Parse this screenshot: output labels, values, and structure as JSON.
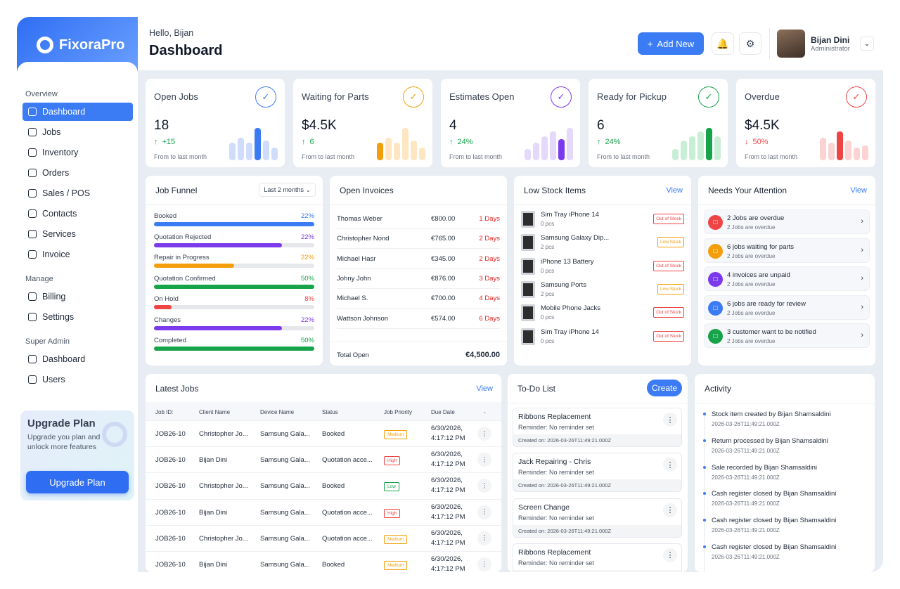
{
  "brand": {
    "name": "FixoraPro"
  },
  "sidebar": {
    "sections": [
      {
        "title": "Overview",
        "items": [
          {
            "label": "Dashboard",
            "icon": "home-icon",
            "active": true
          },
          {
            "label": "Jobs",
            "icon": "inbox-icon"
          },
          {
            "label": "Inventory",
            "icon": "clipboard-icon"
          },
          {
            "label": "Orders",
            "icon": "archive-icon"
          },
          {
            "label": "Sales / POS",
            "icon": "clipboard-icon"
          },
          {
            "label": "Contacts",
            "icon": "users-icon"
          },
          {
            "label": "Services",
            "icon": "server-icon"
          },
          {
            "label": "Invoice",
            "icon": "file-icon"
          }
        ]
      },
      {
        "title": "Manage",
        "items": [
          {
            "label": "Billing",
            "icon": "card-icon"
          },
          {
            "label": "Settings",
            "icon": "gear-icon"
          }
        ]
      },
      {
        "title": "Super Admin",
        "items": [
          {
            "label": "Dashboard",
            "icon": "home-icon"
          },
          {
            "label": "Users",
            "icon": "user-gear-icon"
          }
        ]
      }
    ],
    "upgrade": {
      "title": "Upgrade Plan",
      "text": "Upgrade you plan and unlock more features",
      "button": "Upgrade Plan"
    }
  },
  "header": {
    "greeting": "Hello, Bijan",
    "title": "Dashboard",
    "add_new": "Add New",
    "user_name": "Bijan Dini",
    "user_role": "Administrator"
  },
  "stats": [
    {
      "label": "Open Jobs",
      "value": "18",
      "change": "+15",
      "trend": "up",
      "sub": "From to last month",
      "color": "#3b7cf5",
      "light": "#cfdcfb",
      "bars": [
        0.55,
        0.7,
        0.55,
        1.0,
        0.6,
        0.4
      ],
      "highlight": 3
    },
    {
      "label": "Waiting for Parts",
      "value": "$4.5K",
      "change": "6",
      "trend": "up",
      "sub": "From to last month",
      "color": "#f59e0b",
      "light": "#fde6c1",
      "bars": [
        0.55,
        0.7,
        0.55,
        1.0,
        0.6,
        0.4
      ],
      "highlight": 0
    },
    {
      "label": "Estimates Open",
      "value": "4",
      "change": "24%",
      "trend": "up",
      "sub": "From to last month",
      "color": "#7c3aed",
      "light": "#e4d8fb",
      "bars": [
        0.35,
        0.55,
        0.75,
        0.9,
        0.65,
        1.0
      ],
      "highlight": 4
    },
    {
      "label": "Ready for Pickup",
      "value": "6",
      "change": "24%",
      "trend": "up",
      "sub": "From to last month",
      "color": "#16a34a",
      "light": "#c8efd5",
      "bars": [
        0.35,
        0.6,
        0.75,
        0.9,
        1.0,
        0.75
      ],
      "highlight": 4
    },
    {
      "label": "Overdue",
      "value": "$4.5K",
      "change": "50%",
      "trend": "down",
      "sub": "From to last month",
      "color": "#ef4444",
      "light": "#fbd3d3",
      "bars": [
        0.7,
        0.55,
        0.9,
        0.6,
        0.4,
        0.45
      ],
      "highlight": 2
    }
  ],
  "funnel": {
    "title": "Job Funnel",
    "filter": "Last 2 months",
    "rows": [
      {
        "label": "Booked",
        "pct": "22%",
        "fill": 1.0,
        "color": "#3b7cf5"
      },
      {
        "label": "Quotation Rejected",
        "pct": "22%",
        "fill": 0.8,
        "color": "#7c3aed"
      },
      {
        "label": "Repair in Progress",
        "pct": "22%",
        "fill": 0.5,
        "color": "#f59e0b"
      },
      {
        "label": "Quotation Confirmed",
        "pct": "50%",
        "fill": 1.0,
        "color": "#16a34a"
      },
      {
        "label": "On Hold",
        "pct": "8%",
        "fill": 0.11,
        "color": "#ef4444"
      },
      {
        "label": "Changes",
        "pct": "22%",
        "fill": 0.8,
        "color": "#7c3aed"
      },
      {
        "label": "Completed",
        "pct": "50%",
        "fill": 1.0,
        "color": "#16a34a"
      }
    ]
  },
  "invoices": {
    "title": "Open Invoices",
    "rows": [
      {
        "name": "Thomas Weber",
        "amount": "€800.00",
        "days": "1 Days"
      },
      {
        "name": "Christopher Nond",
        "amount": "€765.00",
        "days": "2 Days"
      },
      {
        "name": "Michael Hasr",
        "amount": "€345.00",
        "days": "2 Days"
      },
      {
        "name": "Johny John",
        "amount": "€876.00",
        "days": "3 Days"
      },
      {
        "name": "Michael S.",
        "amount": "€700.00",
        "days": "4 Days"
      },
      {
        "name": "Wattson Johnson",
        "amount": "€574.00",
        "days": "6 Days"
      }
    ],
    "total_label": "Total Open",
    "total": "€4,500.00"
  },
  "low_stock": {
    "title": "Low Stock Items",
    "view": "View",
    "items": [
      {
        "name": "Sim Tray iPhone 14",
        "qty": "0 pcs",
        "status": "Out of Stock"
      },
      {
        "name": "Samsung Galaxy Dip...",
        "qty": "2 pcs",
        "status": "Low Stock"
      },
      {
        "name": "iPhone 13 Battery",
        "qty": "0 pcs",
        "status": "Out of Stock"
      },
      {
        "name": "Samsung Ports",
        "qty": "2 pcs",
        "status": "Low Stock"
      },
      {
        "name": "Mobile Phone Jacks",
        "qty": "0 pcs",
        "status": "Out of Stock"
      },
      {
        "name": "Sim Tray iPhone 14",
        "qty": "0 pcs",
        "status": "Out of Stock"
      }
    ]
  },
  "attention": {
    "title": "Needs Your Attention",
    "view": "View",
    "items": [
      {
        "text": "2 Jobs are overdue",
        "sub": "2 Jobs are overdue",
        "color": "#ef4444",
        "icon": "clipboard-icon"
      },
      {
        "text": "6 jobs waiting for parts",
        "sub": "2 Jobs are overdue",
        "color": "#f59e0b",
        "icon": "mail-icon"
      },
      {
        "text": "4 invoices are unpaid",
        "sub": "2 Jobs are overdue",
        "color": "#7c3aed",
        "icon": "file-icon"
      },
      {
        "text": "6 jobs are ready for review",
        "sub": "2 Jobs are overdue",
        "color": "#3b7cf5",
        "icon": "check-clipboard-icon"
      },
      {
        "text": "3 customer want to be notified",
        "sub": "2 Jobs are overdue",
        "color": "#16a34a",
        "icon": "bell-clipboard-icon"
      }
    ]
  },
  "jobs": {
    "title": "Latest Jobs",
    "view": "View",
    "headers": [
      "Job ID:",
      "Client Name",
      "Device Name",
      "Status",
      "Job Priority",
      "Due Date",
      "-"
    ],
    "rows": [
      {
        "id": "JOB26-10",
        "client": "Christopher Jo...",
        "device": "Samsung Gala...",
        "status": "Booked",
        "priority": "Medium",
        "due1": "6/30/2026,",
        "due2": "4:17:12 PM"
      },
      {
        "id": "JOB26-10",
        "client": "Bijan Dini",
        "device": "Samsung Gala...",
        "status": "Quotation acce...",
        "priority": "High",
        "due1": "6/30/2026,",
        "due2": "4:17:12 PM"
      },
      {
        "id": "JOB26-10",
        "client": "Christopher Jo...",
        "device": "Samsung Gala...",
        "status": "Booked",
        "priority": "Low",
        "due1": "6/30/2026,",
        "due2": "4:17:12 PM"
      },
      {
        "id": "JOB26-10",
        "client": "Bijan Dini",
        "device": "Samsung Gala...",
        "status": "Quotation acce...",
        "priority": "High",
        "due1": "6/30/2026,",
        "due2": "4:17:12 PM"
      },
      {
        "id": "JOB26-10",
        "client": "Christopher Jo...",
        "device": "Samsung Gala...",
        "status": "Quotation acce...",
        "priority": "Medium",
        "due1": "6/30/2026,",
        "due2": "4:17:12 PM"
      },
      {
        "id": "JOB26-10",
        "client": "Bijan Dini",
        "device": "Samsung Gala...",
        "status": "Booked",
        "priority": "Medium",
        "due1": "6/30/2026,",
        "due2": "4:17:12 PM"
      }
    ]
  },
  "todo": {
    "title": "To-Do List",
    "create": "Create",
    "items": [
      {
        "title": "Ribbons Replacement",
        "reminder": "Reminder: No reminder set",
        "created": "Created on: 2026-03-26T11:49:21.000Z"
      },
      {
        "title": "Jack Repairing - Chris",
        "reminder": "Reminder: No reminder set",
        "created": "Created on: 2026-03-26T11:49:21.000Z"
      },
      {
        "title": "Screen Change",
        "reminder": "Reminder: No reminder set",
        "created": "Created on: 2026-03-26T11:49:21.000Z"
      },
      {
        "title": "Ribbons Replacement",
        "reminder": "Reminder: No reminder set",
        "created": "Created on: 2026-03-26T11:49:21.000Z"
      }
    ]
  },
  "activity": {
    "title": "Activity",
    "items": [
      {
        "text": "Stock item created by Bijan Shamsaldini",
        "date": "2026-03-26T11:49:21.000Z"
      },
      {
        "text": "Return processed by Bijan Shamsaldini",
        "date": "2026-03-26T11:49:21.000Z"
      },
      {
        "text": "Sale recorded by Bijan Shamsaldini",
        "date": "2026-03-26T11:49:21.000Z"
      },
      {
        "text": "Cash register closed by Bijan Shamsaldini",
        "date": "2026-03-26T11:49:21.000Z"
      },
      {
        "text": "Cash register closed by Bijan Shamsaldini",
        "date": "2026-03-26T11:49:21.000Z"
      },
      {
        "text": "Cash register closed by Bijan Shamsaldini",
        "date": "2026-03-26T11:49:21.000Z"
      }
    ]
  },
  "colors": {
    "accent": "#3b7cf5",
    "danger": "#ef4444",
    "warning": "#f59e0b",
    "success": "#16a34a"
  }
}
